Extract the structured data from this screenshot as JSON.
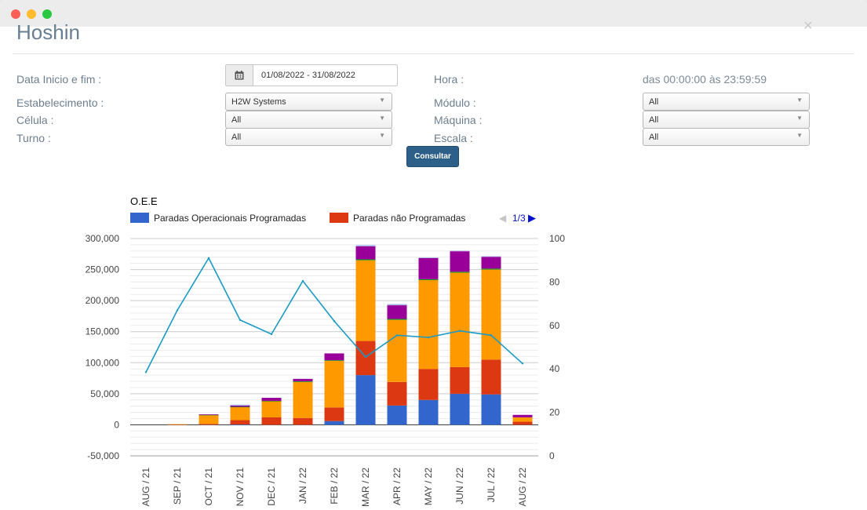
{
  "window": {
    "controls": [
      "close",
      "minimize",
      "zoom"
    ]
  },
  "page": {
    "title": "Hoshin",
    "close_icon": "×"
  },
  "filters": {
    "date_label": "Data Inicio e fim :",
    "date_value": "01/08/2022 - 31/08/2022",
    "hora_label": "Hora :",
    "hora_value": "das 00:00:00 às 23:59:59",
    "estabelecimento_label": "Estabelecimento :",
    "estabelecimento_value": "H2W Systems",
    "modulo_label": "Módulo :",
    "modulo_value": "All",
    "celula_label": "Célula :",
    "celula_value": "All",
    "maquina_label": "Máquina :",
    "maquina_value": "All",
    "turno_label": "Turno :",
    "turno_value": "All",
    "escala_label": "Escala :",
    "escala_value": "All",
    "consultar_label": "Consultar"
  },
  "chart_data": {
    "type": "bar",
    "stacked": true,
    "title": "O.E.E",
    "legend": {
      "placement": "top",
      "visible_entries": [
        "Paradas Operacionais Programadas",
        "Paradas não Programadas"
      ],
      "page": "1/3"
    },
    "categories": [
      "AUG / 21",
      "SEP / 21",
      "OCT / 21",
      "NOV / 21",
      "DEC / 21",
      "JAN / 22",
      "FEB / 22",
      "MAR / 22",
      "APR / 22",
      "MAY / 22",
      "JUN / 22",
      "JUL / 22",
      "AUG / 22"
    ],
    "y_left": {
      "min": -50000,
      "max": 300000,
      "ticks": [
        "300,000",
        "250,000",
        "200,000",
        "150,000",
        "100,000",
        "50,000",
        "0",
        "-50,000"
      ]
    },
    "y_right": {
      "min": 0,
      "max": 100,
      "ticks": [
        "100",
        "80",
        "60",
        "40",
        "20",
        "0"
      ]
    },
    "series": [
      {
        "name": "Paradas Operacionais Programadas",
        "color": "#3366cc",
        "values": [
          0,
          0,
          0,
          500,
          0,
          0,
          6000,
          80000,
          31000,
          40000,
          50000,
          49000,
          0
        ]
      },
      {
        "name": "Paradas não Programadas",
        "color": "#dc3912",
        "values": [
          0,
          500,
          1500,
          7000,
          12000,
          11000,
          22000,
          55000,
          38000,
          50000,
          43000,
          56000,
          5000
        ]
      },
      {
        "color": "#ff9900",
        "values": [
          0,
          500,
          14000,
          21000,
          26000,
          58000,
          75000,
          130000,
          100000,
          143000,
          152000,
          145000,
          7000
        ]
      },
      {
        "color": "#109618",
        "values": [
          0,
          0,
          500,
          500,
          500,
          1000,
          1000,
          1500,
          1500,
          1500,
          1500,
          1500,
          0
        ]
      },
      {
        "color": "#990099",
        "values": [
          0,
          0,
          1000,
          2000,
          5000,
          4000,
          11000,
          21000,
          22000,
          34000,
          33000,
          19000,
          4000
        ]
      },
      {
        "color": "#aab8e6",
        "values": [
          0,
          0,
          0,
          1500,
          0,
          0,
          0,
          2000,
          2000,
          1000,
          1000,
          1000,
          0
        ]
      }
    ],
    "line": {
      "axis": "right",
      "color": "#1a9ac6",
      "values": [
        38.5,
        67,
        91,
        62.5,
        56,
        80.5,
        62,
        45.5,
        55.5,
        54.5,
        57.5,
        55.5,
        42.5
      ]
    },
    "grid": true
  }
}
